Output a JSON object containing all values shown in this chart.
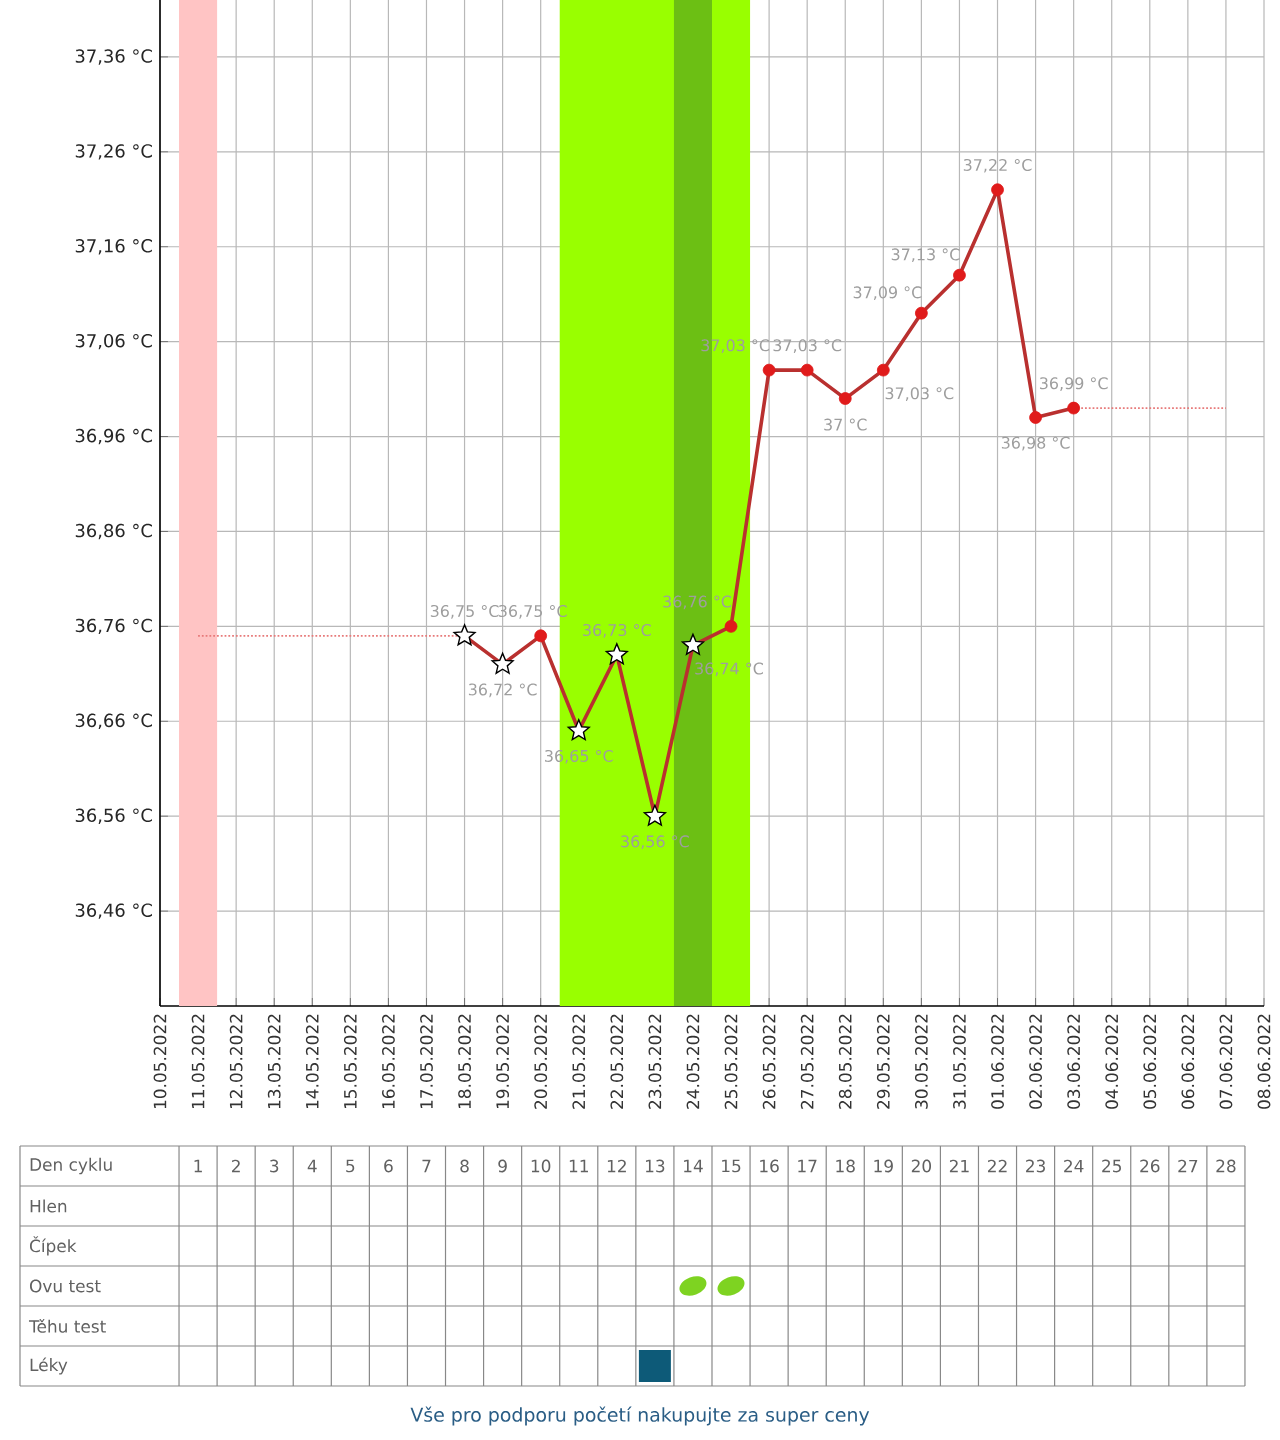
{
  "chart_data": {
    "type": "line",
    "xlim": [
      "2022-05-10",
      "2022-06-08"
    ],
    "xticks": [
      {
        "value": "2022-05-10",
        "label": "10.05.2022"
      },
      {
        "value": "2022-05-11",
        "label": "11.05.2022"
      },
      {
        "value": "2022-05-12",
        "label": "12.05.2022"
      },
      {
        "value": "2022-05-13",
        "label": "13.05.2022"
      },
      {
        "value": "2022-05-14",
        "label": "14.05.2022"
      },
      {
        "value": "2022-05-15",
        "label": "15.05.2022"
      },
      {
        "value": "2022-05-16",
        "label": "16.05.2022"
      },
      {
        "value": "2022-05-17",
        "label": "17.05.2022"
      },
      {
        "value": "2022-05-18",
        "label": "18.05.2022"
      },
      {
        "value": "2022-05-19",
        "label": "19.05.2022"
      },
      {
        "value": "2022-05-20",
        "label": "20.05.2022"
      },
      {
        "value": "2022-05-21",
        "label": "21.05.2022"
      },
      {
        "value": "2022-05-22",
        "label": "22.05.2022"
      },
      {
        "value": "2022-05-23",
        "label": "23.05.2022"
      },
      {
        "value": "2022-05-24",
        "label": "24.05.2022"
      },
      {
        "value": "2022-05-25",
        "label": "25.05.2022"
      },
      {
        "value": "2022-05-26",
        "label": "26.05.2022"
      },
      {
        "value": "2022-05-27",
        "label": "27.05.2022"
      },
      {
        "value": "2022-05-28",
        "label": "28.05.2022"
      },
      {
        "value": "2022-05-29",
        "label": "29.05.2022"
      },
      {
        "value": "2022-05-30",
        "label": "30.05.2022"
      },
      {
        "value": "2022-05-31",
        "label": "31.05.2022"
      },
      {
        "value": "2022-06-01",
        "label": "01.06.2022"
      },
      {
        "value": "2022-06-02",
        "label": "02.06.2022"
      },
      {
        "value": "2022-06-03",
        "label": "03.06.2022"
      },
      {
        "value": "2022-06-04",
        "label": "04.06.2022"
      },
      {
        "value": "2022-06-05",
        "label": "05.06.2022"
      },
      {
        "value": "2022-06-06",
        "label": "06.06.2022"
      },
      {
        "value": "2022-06-07",
        "label": "07.06.2022"
      },
      {
        "value": "2022-06-08",
        "label": "08.06.2022"
      }
    ],
    "ylim": [
      36.36,
      37.42
    ],
    "yticks": [
      {
        "value": 36.46,
        "label": "36,46 °C"
      },
      {
        "value": 36.56,
        "label": "36,56 °C"
      },
      {
        "value": 36.66,
        "label": "36,66 °C"
      },
      {
        "value": 36.76,
        "label": "36,76 °C"
      },
      {
        "value": 36.86,
        "label": "36,86 °C"
      },
      {
        "value": 36.96,
        "label": "36,96 °C"
      },
      {
        "value": 37.06,
        "label": "37,06 °C"
      },
      {
        "value": 37.16,
        "label": "37,16 °C"
      },
      {
        "value": 37.26,
        "label": "37,26 °C"
      },
      {
        "value": 37.36,
        "label": "37,36 °C"
      }
    ],
    "grid": true,
    "bands": [
      {
        "axis": "x",
        "from": "2022-05-10T12:00",
        "to": "2022-05-11T12:00",
        "color": "#ffc4c4"
      },
      {
        "axis": "x",
        "from": "2022-05-20T12:00",
        "to": "2022-05-25T12:00",
        "color": "#99ff00"
      },
      {
        "axis": "x",
        "from": "2022-05-23T12:00",
        "to": "2022-05-24T12:00",
        "color": "#6cbf14"
      }
    ],
    "series": [
      {
        "color": "#e77a7a",
        "line_style": "dotted",
        "marker": "none",
        "x": [
          "2022-05-11",
          "2022-05-18",
          "2022-05-25",
          "2022-06-03",
          "2022-06-07"
        ],
        "values": [
          36.75,
          36.75,
          null,
          36.99,
          36.99
        ]
      },
      {
        "color": "#b9302f",
        "marker": "none",
        "x": [
          "2022-05-18",
          "2022-05-19",
          "2022-05-20",
          "2022-05-21",
          "2022-05-22",
          "2022-05-23",
          "2022-05-24",
          "2022-05-25",
          "2022-05-26",
          "2022-05-27",
          "2022-05-28",
          "2022-05-29",
          "2022-05-30",
          "2022-05-31",
          "2022-06-01",
          "2022-06-02",
          "2022-06-03"
        ],
        "values": [
          36.75,
          36.72,
          36.75,
          36.65,
          36.73,
          36.56,
          36.74,
          36.76,
          37.03,
          37.03,
          37.0,
          37.03,
          37.09,
          37.13,
          37.22,
          36.98,
          36.99
        ],
        "value_labels": [
          "36,75 °C",
          "36,72 °C",
          "36,75 °C",
          "36,65 °C",
          "36,73 °C",
          "36,56 °C",
          "36,74 °C",
          "36,76 °C",
          "37,03 °C",
          "37,03 °C",
          "37 °C",
          "37,03 °C",
          "37,09 °C",
          "37,13 °C",
          "37,22 °C",
          "36,98 °C",
          "36,99 °C"
        ]
      },
      {
        "type": "scatter",
        "color": "#e01b1b",
        "marker": "circle",
        "x": [
          "2022-05-20",
          "2022-05-25",
          "2022-05-26",
          "2022-05-27",
          "2022-05-28",
          "2022-05-29",
          "2022-05-30",
          "2022-05-31",
          "2022-06-01",
          "2022-06-02",
          "2022-06-03"
        ],
        "values": [
          36.75,
          36.76,
          37.03,
          37.03,
          37.0,
          37.03,
          37.09,
          37.13,
          37.22,
          36.98,
          36.99
        ]
      },
      {
        "type": "scatter",
        "color": "#ffffff",
        "marker": "star",
        "x": [
          "2022-05-18",
          "2022-05-19",
          "2022-05-21",
          "2022-05-22",
          "2022-05-23",
          "2022-05-24"
        ],
        "values": [
          36.75,
          36.72,
          36.65,
          36.73,
          36.56,
          36.74
        ]
      }
    ],
    "annotations": [
      "Den cyklu",
      "1",
      "2",
      "3",
      "4",
      "5",
      "6",
      "7",
      "8",
      "9",
      "10",
      "11",
      "12",
      "13",
      "14",
      "15",
      "16",
      "17",
      "18",
      "19",
      "20",
      "21",
      "22",
      "23",
      "24",
      "25",
      "26",
      "27",
      "28",
      "Hlen",
      "Čípek",
      "Ovu test",
      "Těhu test",
      "Léky",
      "Vše pro podporu početí nakupujte za super ceny"
    ]
  }
}
